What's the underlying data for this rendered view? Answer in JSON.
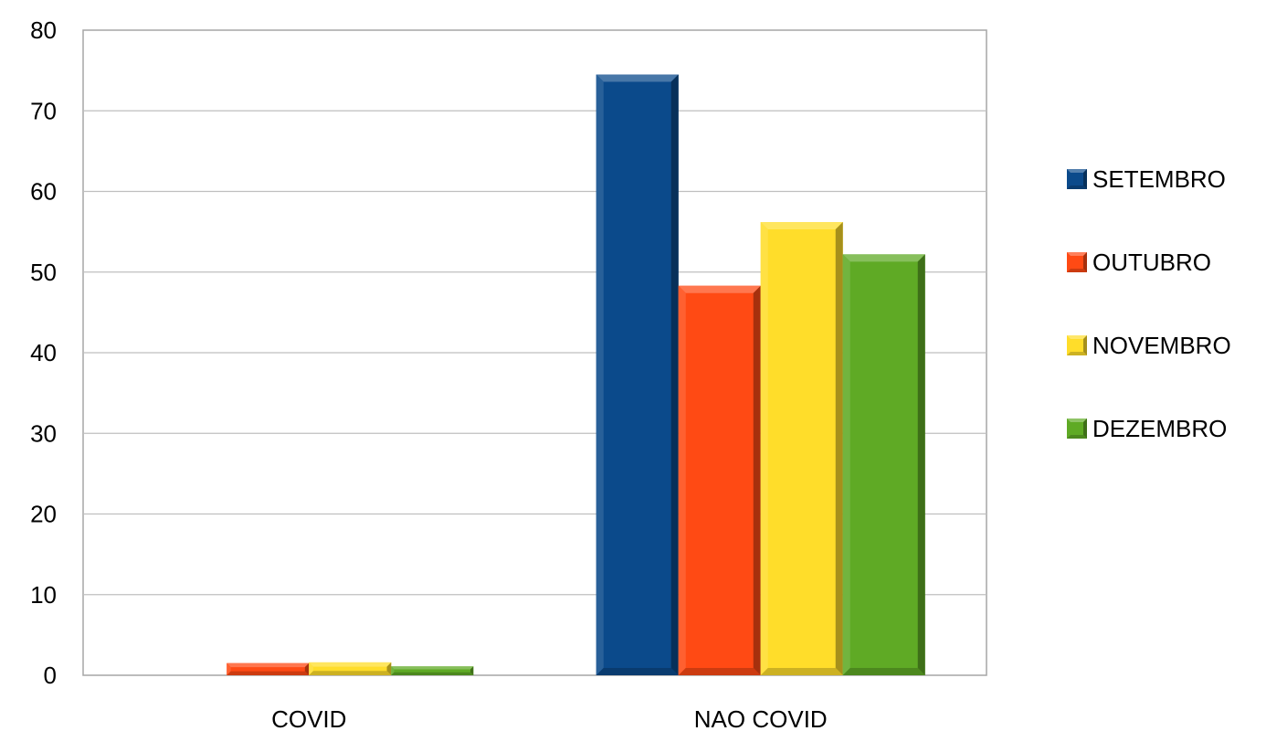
{
  "chart_data": {
    "type": "bar",
    "title": "",
    "xlabel": "",
    "ylabel": "",
    "categories": [
      "COVID",
      "NAO COVID"
    ],
    "series": [
      {
        "name": "SETEMBRO",
        "values": [
          0,
          74.5
        ],
        "color": "#0B4A8B"
      },
      {
        "name": "OUTUBRO",
        "values": [
          1.5,
          48.3
        ],
        "color": "#FF4A14"
      },
      {
        "name": "NOVEMBRO",
        "values": [
          1.6,
          56.2
        ],
        "color": "#FFDD2A"
      },
      {
        "name": "DEZEMBRO",
        "values": [
          1.1,
          52.2
        ],
        "color": "#5FAA25"
      }
    ],
    "ylim": [
      0,
      80
    ],
    "yticks": [
      0,
      10,
      20,
      30,
      40,
      50,
      60,
      70,
      80
    ],
    "grid": true,
    "legend_position": "right"
  }
}
